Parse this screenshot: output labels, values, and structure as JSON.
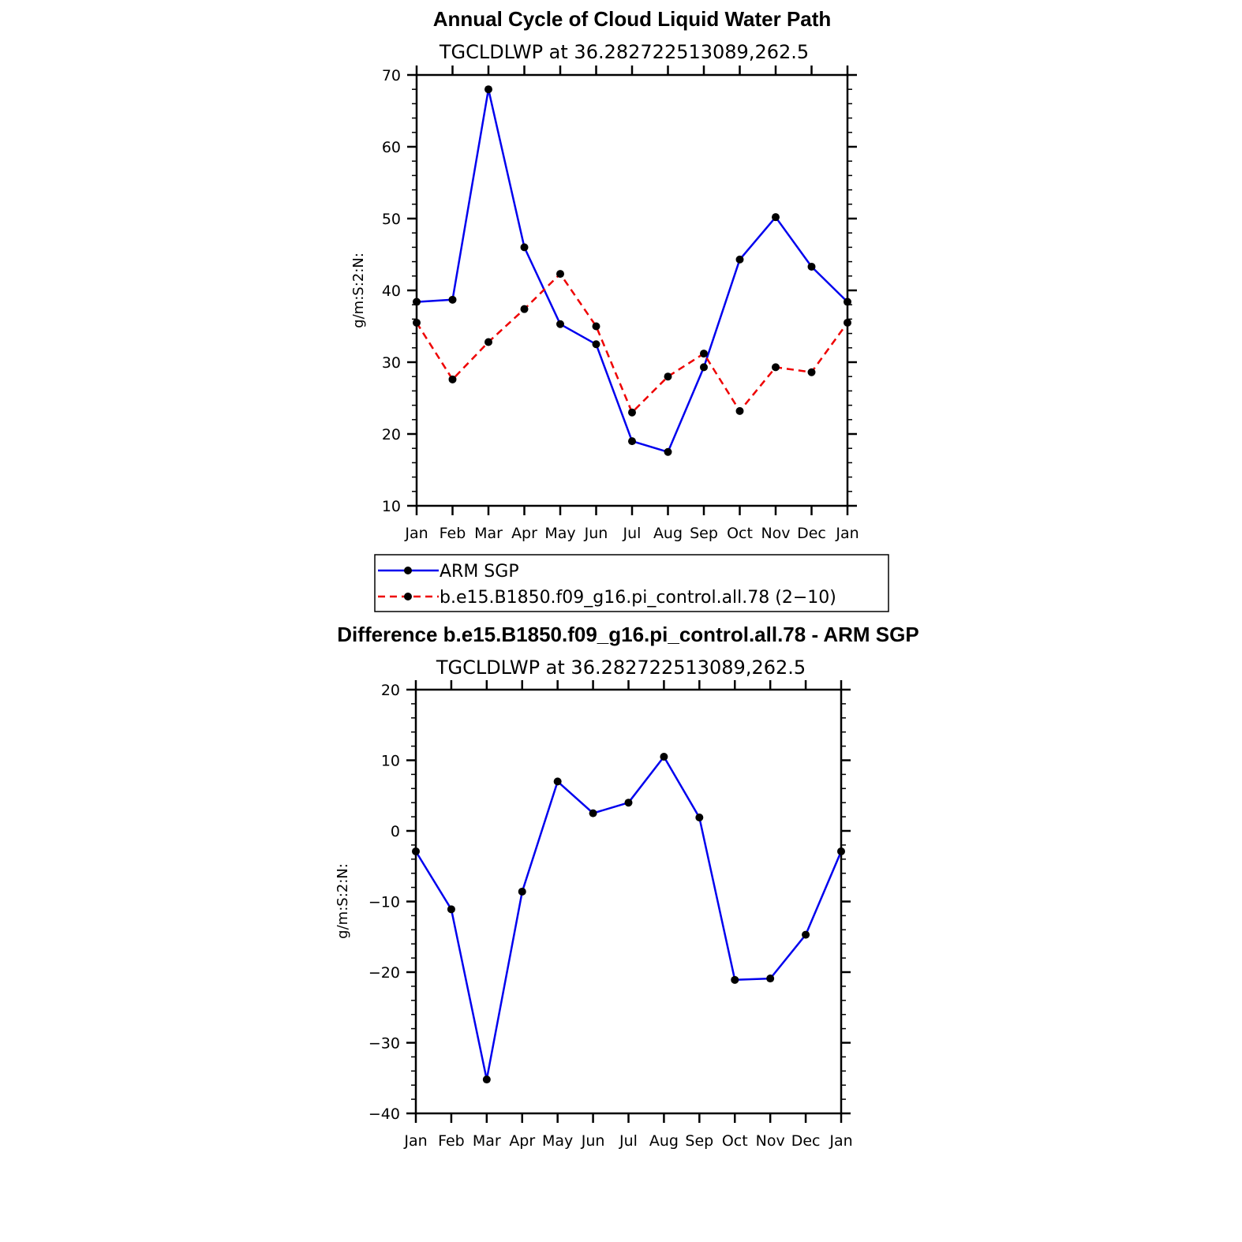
{
  "chart_data": [
    {
      "type": "line",
      "title": "Annual Cycle of Cloud Liquid Water Path",
      "subtitle": "TGCLDLWP  at  36.282722513089,262.5",
      "ylabel": "g/m:S:2:N:",
      "xlabel": "",
      "ylim": [
        10,
        70
      ],
      "yticks": [
        10,
        20,
        30,
        40,
        50,
        60,
        70
      ],
      "categories": [
        "Jan",
        "Feb",
        "Mar",
        "Apr",
        "May",
        "Jun",
        "Jul",
        "Aug",
        "Sep",
        "Oct",
        "Nov",
        "Dec",
        "Jan"
      ],
      "series": [
        {
          "name": "ARM  SGP",
          "color": "#0000ee",
          "dashed": false,
          "values": [
            38.4,
            38.7,
            68.0,
            46.0,
            35.3,
            32.5,
            19.0,
            17.5,
            29.3,
            44.3,
            50.2,
            43.3,
            38.4
          ]
        },
        {
          "name": "b.e15.B1850.f09_g16.pi_control.all.78  (2−10)",
          "color": "#ee0000",
          "dashed": true,
          "values": [
            35.5,
            27.6,
            32.8,
            37.4,
            42.3,
            35.0,
            23.0,
            28.0,
            31.2,
            23.2,
            29.3,
            28.6,
            35.5
          ]
        }
      ]
    },
    {
      "type": "line",
      "title": "Difference b.e15.B1850.f09_g16.pi_control.all.78 - ARM SGP",
      "subtitle": "TGCLDLWP  at  36.282722513089,262.5",
      "ylabel": "g/m:S:2:N:",
      "xlabel": "",
      "ylim": [
        -40,
        20
      ],
      "yticks": [
        -40,
        -30,
        -20,
        -10,
        0,
        10,
        20
      ],
      "ytick_labels": [
        "−40",
        "−30",
        "−20",
        "−10",
        "0",
        "10",
        "20"
      ],
      "categories": [
        "Jan",
        "Feb",
        "Mar",
        "Apr",
        "May",
        "Jun",
        "Jul",
        "Aug",
        "Sep",
        "Oct",
        "Nov",
        "Dec",
        "Jan"
      ],
      "series": [
        {
          "name": "Difference",
          "color": "#0000ee",
          "dashed": false,
          "values": [
            -2.9,
            -11.1,
            -35.2,
            -8.6,
            7.0,
            2.5,
            4.0,
            10.5,
            1.9,
            -21.1,
            -20.9,
            -14.7,
            -2.9
          ]
        }
      ]
    }
  ]
}
